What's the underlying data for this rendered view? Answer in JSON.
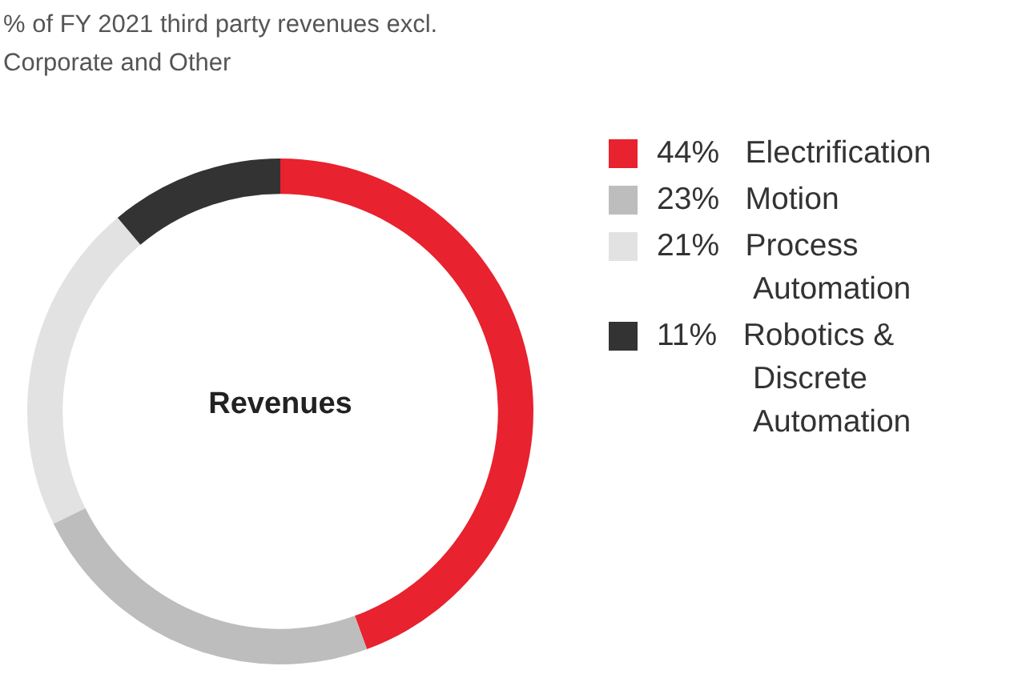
{
  "chart_data": {
    "type": "donut",
    "title": "% of FY 2021 third party revenues excl. Corporate and Other",
    "categories": [
      "Electrification",
      "Motion",
      "Process Automation",
      "Robotics & Discrete Automation"
    ],
    "values": [
      44,
      23,
      21,
      11
    ],
    "colors": [
      "#e8222e",
      "#bdbdbd",
      "#e2e2e2",
      "#333333"
    ],
    "value_labels": [
      "44%",
      "23%",
      "21%",
      "11%"
    ],
    "annotations": [
      "Revenues"
    ],
    "legend": "right"
  }
}
